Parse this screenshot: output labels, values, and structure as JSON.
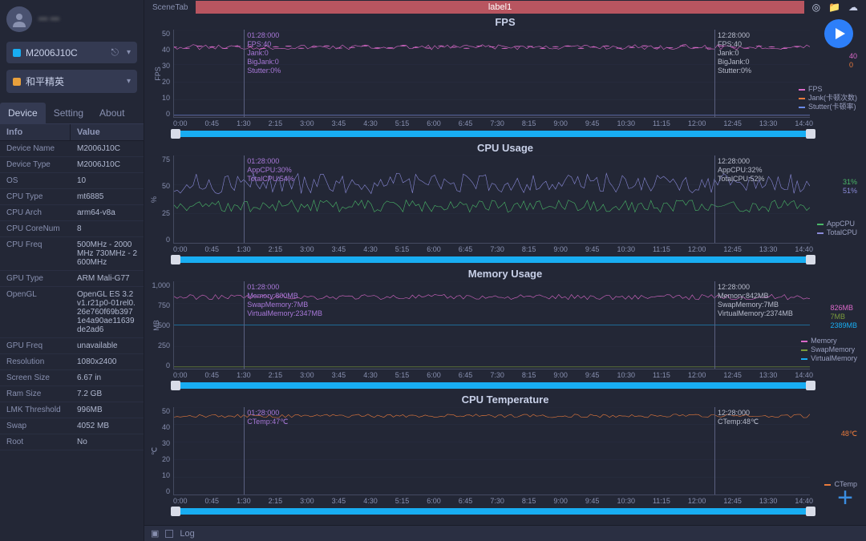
{
  "user": {
    "name": "••• •••"
  },
  "selectors": {
    "device": {
      "label": "M2006J10C",
      "dot_color": "#18adf2"
    },
    "app": {
      "label": "和平精英",
      "dot_color": "#e8a03c"
    }
  },
  "tabs": [
    "Device",
    "Setting",
    "About"
  ],
  "active_tab": 0,
  "info_header": {
    "key": "Info",
    "val": "Value"
  },
  "device_info": [
    {
      "k": "Device Name",
      "v": "M2006J10C"
    },
    {
      "k": "Device Type",
      "v": "M2006J10C"
    },
    {
      "k": "OS",
      "v": "10"
    },
    {
      "k": "CPU Type",
      "v": "mt6885"
    },
    {
      "k": "CPU Arch",
      "v": "arm64-v8a"
    },
    {
      "k": "CPU CoreNum",
      "v": "8"
    },
    {
      "k": "CPU Freq",
      "v": "500MHz - 2000MHz 730MHz - 2600MHz"
    },
    {
      "k": "GPU Type",
      "v": "ARM Mali-G77"
    },
    {
      "k": "OpenGL",
      "v": "OpenGL ES 3.2 v1.r21p0-01rel0.26e760f69b3971e4a90ae11639de2ad6"
    },
    {
      "k": "GPU Freq",
      "v": "unavailable"
    },
    {
      "k": "Resolution",
      "v": "1080x2400"
    },
    {
      "k": "Screen Size",
      "v": "6.67 in"
    },
    {
      "k": "Ram Size",
      "v": "7.2 GB"
    },
    {
      "k": "LMK Threshold",
      "v": "996MB"
    },
    {
      "k": "Swap",
      "v": "4052 MB"
    },
    {
      "k": "Root",
      "v": "No"
    }
  ],
  "topbar": {
    "scene_tab": "SceneTab",
    "label": "label1"
  },
  "time_axis": [
    "0:00",
    "0:45",
    "1:30",
    "2:15",
    "3:00",
    "3:45",
    "4:30",
    "5:15",
    "6:00",
    "6:45",
    "7:30",
    "8:15",
    "9:00",
    "9:45",
    "10:30",
    "11:15",
    "12:00",
    "12:45",
    "13:30",
    "14:40"
  ],
  "marker_positions": {
    "left_pct": 11,
    "right_pct": 85
  },
  "charts": [
    {
      "id": "fps",
      "title": "FPS",
      "unit": "FPS",
      "ymax": 50,
      "yticks": [
        "50",
        "40",
        "30",
        "20",
        "10",
        "0"
      ],
      "marker_left": "01:28:000\nFPS:40\nJank:0\nBigJank:0\nStutter:0%",
      "marker_right": "12:28:000\nFPS:40\nJank:0\nBigJank:0\nStutter:0%",
      "readouts": [
        {
          "txt": "40",
          "color": "#d968c8"
        },
        {
          "txt": "0",
          "color": "#e87a3c"
        }
      ],
      "legend": [
        {
          "name": "FPS",
          "color": "#d968c8"
        },
        {
          "name": "Jank(卡顿次数)",
          "color": "#e87a3c"
        },
        {
          "name": "Stutter(卡顿率)",
          "color": "#6a8ae8"
        }
      ],
      "series": [
        {
          "color": "#d968c8",
          "baseline_pct": 20,
          "noise": 3,
          "dots": true
        },
        {
          "color": "#e87a3c",
          "baseline_pct": 98,
          "noise": 0
        },
        {
          "color": "#6a8ae8",
          "baseline_pct": 98,
          "noise": 0
        }
      ]
    },
    {
      "id": "cpu",
      "title": "CPU Usage",
      "unit": "%",
      "ymax": 75,
      "yticks": [
        "75",
        "50",
        "25",
        "0"
      ],
      "marker_left": "01:28:000\nAppCPU:30%\nTotalCPU:54%",
      "marker_right": "12:28:000\nAppCPU:32%\nTotalCPU:52%",
      "readouts": [
        {
          "txt": "31%",
          "color": "#4ab868"
        },
        {
          "txt": "51%",
          "color": "#8a8ad8"
        }
      ],
      "legend": [
        {
          "name": "AppCPU",
          "color": "#4ab868"
        },
        {
          "name": "TotalCPU",
          "color": "#8a8ad8"
        }
      ],
      "series": [
        {
          "color": "#8a8ad8",
          "baseline_pct": 32,
          "noise": 12
        },
        {
          "color": "#4ab868",
          "baseline_pct": 58,
          "noise": 7
        }
      ]
    },
    {
      "id": "mem",
      "title": "Memory Usage",
      "unit": "MB",
      "ymax": 1000,
      "yticks": [
        "1,000",
        "750",
        "500",
        "250",
        "0"
      ],
      "marker_left": "01:28:000\nMemory:800MB\nSwapMemory:7MB\nVirtualMemory:2347MB",
      "marker_right": "12:28:000\nMemory:842MB\nSwapMemory:7MB\nVirtualMemory:2374MB",
      "readouts": [
        {
          "txt": "826MB",
          "color": "#d968c8"
        },
        {
          "txt": "7MB",
          "color": "#7a9a3c"
        },
        {
          "txt": "2389MB",
          "color": "#18adf2"
        }
      ],
      "legend": [
        {
          "name": "Memory",
          "color": "#d968c8"
        },
        {
          "name": "SwapMemory",
          "color": "#7a9a3c"
        },
        {
          "name": "VirtualMemory",
          "color": "#18adf2"
        }
      ],
      "series": [
        {
          "color": "#d968c8",
          "baseline_pct": 18,
          "noise": 3
        },
        {
          "color": "#7a9a3c",
          "baseline_pct": 98,
          "noise": 0
        },
        {
          "color": "#18adf2",
          "baseline_pct": 50,
          "noise": 0
        }
      ]
    },
    {
      "id": "temp",
      "title": "CPU Temperature",
      "unit": "℃",
      "ymax": 50,
      "yticks": [
        "50",
        "40",
        "30",
        "20",
        "10",
        "0"
      ],
      "marker_left": "01:28:000\nCTemp:47℃",
      "marker_right": "12:28:000\nCTemp:48℃",
      "readouts": [
        {
          "txt": "48℃",
          "color": "#e87a3c"
        }
      ],
      "legend": [
        {
          "name": "CTemp",
          "color": "#e87a3c"
        }
      ],
      "series": [
        {
          "color": "#e87a3c",
          "baseline_pct": 10,
          "noise": 2
        }
      ]
    }
  ],
  "footer": {
    "log_label": "Log"
  },
  "colors": {
    "bg": "#232736",
    "panel": "#2a2f42",
    "grid": "#2e3348",
    "text_dim": "#8890b0",
    "accent": "#18adf2",
    "label_bar": "#b85560"
  }
}
